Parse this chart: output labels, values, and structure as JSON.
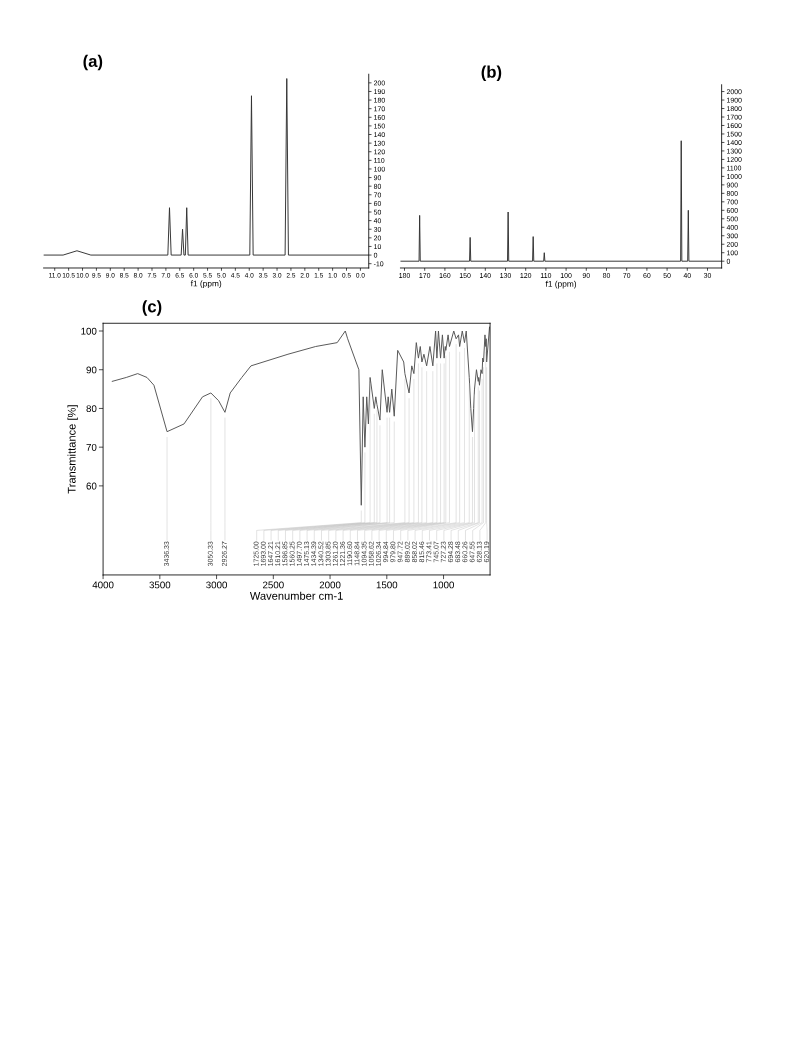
{
  "chart_data": [
    {
      "type": "line",
      "title": "(a)",
      "xlabel": "f1 (ppm)",
      "xlim": [
        11.4,
        -0.3
      ],
      "xticks": [
        {
          "value": 11,
          "label": "11.0"
        },
        10.5,
        {
          "value": 10,
          "label": "10.0"
        },
        9.5,
        {
          "value": 9,
          "label": "9.0"
        },
        8.5,
        {
          "value": 8,
          "label": "8.0"
        },
        7.5,
        {
          "value": 7,
          "label": "7.0"
        },
        6.5,
        {
          "value": 6,
          "label": "6.0"
        },
        5.5,
        {
          "value": 5,
          "label": "5.0"
        },
        4.5,
        {
          "value": 4,
          "label": "4.0"
        },
        3.5,
        {
          "value": 3,
          "label": "3.0"
        },
        2.5,
        {
          "value": 2,
          "label": "2.0"
        },
        1.5,
        {
          "value": 1,
          "label": "1.0"
        },
        0.5,
        {
          "value": 0,
          "label": "0.0"
        }
      ],
      "ylim": [
        -15,
        210
      ],
      "yticks": [
        -10,
        0,
        10,
        20,
        30,
        40,
        50,
        60,
        70,
        80,
        90,
        100,
        110,
        120,
        130,
        140,
        150,
        160,
        170,
        180,
        190,
        200
      ],
      "grid": false,
      "series": [
        {
          "color": "#333333",
          "x": [
            11.4,
            10.7,
            10.2,
            9.7,
            6.93,
            6.87,
            6.81,
            6.45,
            6.4,
            6.35,
            6.3,
            6.25,
            6.2,
            3.98,
            3.92,
            3.86,
            2.71,
            2.65,
            2.59,
            -0.3
          ],
          "values": [
            0,
            0,
            5,
            0,
            0,
            55,
            0,
            0,
            30,
            0,
            0,
            55,
            0,
            0,
            185,
            0,
            0,
            205,
            0,
            0
          ]
        }
      ]
    },
    {
      "type": "line",
      "title": "(b)",
      "xlabel": "f1 (ppm)",
      "xlim": [
        182,
        23
      ],
      "xticks": [
        180,
        170,
        160,
        150,
        140,
        130,
        120,
        110,
        100,
        90,
        80,
        70,
        60,
        50,
        40,
        30
      ],
      "ylim": [
        -80,
        2080
      ],
      "yticks": [
        0,
        100,
        200,
        300,
        400,
        500,
        600,
        700,
        800,
        900,
        1000,
        1100,
        1200,
        1300,
        1400,
        1500,
        1600,
        1700,
        1800,
        1900,
        2000
      ],
      "grid": false,
      "series": [
        {
          "color": "#333333",
          "x": [
            182,
            172.8,
            172.5,
            172.2,
            147.8,
            147.5,
            147.2,
            129.0,
            128.7,
            128.4,
            116.6,
            116.3,
            116.0,
            111.1,
            110.8,
            110.5,
            43.3,
            43.0,
            42.7,
            39.8,
            39.5,
            39.2,
            23
          ],
          "values": [
            0,
            0,
            540,
            0,
            0,
            280,
            0,
            0,
            580,
            0,
            0,
            290,
            0,
            0,
            100,
            0,
            0,
            1420,
            0,
            0,
            600,
            0,
            0
          ]
        }
      ]
    },
    {
      "type": "line",
      "title": "(c)",
      "xlabel": "Wavenumber cm-1",
      "ylabel": "Transmittance [%]",
      "xlim": [
        4000,
        590
      ],
      "xticks": [
        4000,
        3500,
        3000,
        2500,
        2000,
        1500,
        1000
      ],
      "ylim": [
        37,
        102
      ],
      "yticks": [
        60,
        70,
        80,
        90,
        100
      ],
      "grid": false,
      "series": [
        {
          "color": "#555555",
          "x": [
            3919,
            3796,
            3695,
            3613,
            3552,
            3436.33,
            3287,
            3124,
            3050.33,
            2982,
            2926.27,
            2880,
            2778,
            2697,
            2371,
            2127,
            1937,
            1866,
            1845,
            1771,
            1746,
            1725.0,
            1708,
            1693.0,
            1677,
            1662,
            1647.21,
            1610.21,
            1597,
            1586.85,
            1560.25,
            1540,
            1497.7,
            1488,
            1475.13,
            1456,
            1434.39,
            1404,
            1351,
            1340.52,
            1303.85,
            1280,
            1261.2,
            1240,
            1221.36,
            1205,
            1190.6,
            1173,
            1148.84,
            1120,
            1094.35,
            1070,
            1058.62,
            1045,
            1026.34,
            1010,
            994.84,
            985,
            979.8,
            960,
            947.72,
            910,
            889.02,
            868,
            858.02,
            835,
            815.46,
            800,
            773.41,
            760,
            745.07,
            735,
            727.23,
            710,
            694.28,
            690,
            683.48,
            670,
            660.26,
            655,
            647.55,
            635,
            628.13,
            624,
            620.19,
            595
          ],
          "values": [
            87,
            88,
            89,
            88,
            86,
            74,
            76,
            83,
            84,
            82,
            79,
            84,
            88,
            91,
            94,
            96,
            97,
            100,
            98,
            92,
            90,
            55,
            83,
            70,
            83,
            76,
            88,
            80,
            83,
            81,
            77,
            90,
            79,
            83,
            79,
            85,
            78,
            95,
            92,
            89,
            84,
            91,
            89,
            97,
            93,
            96,
            92,
            94,
            91,
            96,
            91,
            100,
            93,
            100,
            93,
            99,
            93,
            96,
            95,
            99,
            96,
            100,
            98,
            99,
            96,
            100,
            97,
            100,
            88,
            80,
            74,
            80,
            85,
            90,
            87,
            88,
            86,
            90,
            89,
            93,
            92,
            99,
            96,
            98,
            92,
            101
          ]
        }
      ],
      "annotations": [
        {
          "text": "3436.33",
          "x": 3436.33,
          "y": 74
        },
        {
          "text": "3050.33",
          "x": 3050.33,
          "y": 84
        },
        {
          "text": "2926.27",
          "x": 2926.27,
          "y": 79
        },
        {
          "text": "1725.00",
          "x": 1725.0,
          "y": 55
        },
        {
          "text": "1693.00",
          "x": 1693.0,
          "y": 70
        },
        {
          "text": "1647.21",
          "x": 1647.21,
          "y": 88
        },
        {
          "text": "1610.21",
          "x": 1610.21,
          "y": 80
        },
        {
          "text": "1586.85",
          "x": 1586.85,
          "y": 81
        },
        {
          "text": "1560.25",
          "x": 1560.25,
          "y": 77
        },
        {
          "text": "1497.70",
          "x": 1497.7,
          "y": 79
        },
        {
          "text": "1475.13",
          "x": 1475.13,
          "y": 79
        },
        {
          "text": "1434.39",
          "x": 1434.39,
          "y": 78
        },
        {
          "text": "1340.52",
          "x": 1340.52,
          "y": 89
        },
        {
          "text": "1303.85",
          "x": 1303.85,
          "y": 84
        },
        {
          "text": "1261.20",
          "x": 1261.2,
          "y": 89
        },
        {
          "text": "1221.36",
          "x": 1221.36,
          "y": 93
        },
        {
          "text": "1190.60",
          "x": 1190.6,
          "y": 92
        },
        {
          "text": "1148.84",
          "x": 1148.84,
          "y": 91
        },
        {
          "text": "1094.35",
          "x": 1094.35,
          "y": 91
        },
        {
          "text": "1058.62",
          "x": 1058.62,
          "y": 93
        },
        {
          "text": "1026.34",
          "x": 1026.34,
          "y": 93
        },
        {
          "text": "994.84",
          "x": 994.84,
          "y": 93
        },
        {
          "text": "979.80",
          "x": 979.8,
          "y": 95
        },
        {
          "text": "947.72",
          "x": 947.72,
          "y": 96
        },
        {
          "text": "889.02",
          "x": 889.02,
          "y": 98
        },
        {
          "text": "858.02",
          "x": 858.02,
          "y": 96
        },
        {
          "text": "815.46",
          "x": 815.46,
          "y": 97
        },
        {
          "text": "773.41",
          "x": 773.41,
          "y": 88
        },
        {
          "text": "745.07",
          "x": 745.07,
          "y": 74
        },
        {
          "text": "727.23",
          "x": 727.23,
          "y": 85
        },
        {
          "text": "694.28",
          "x": 694.28,
          "y": 87
        },
        {
          "text": "683.48",
          "x": 683.48,
          "y": 86
        },
        {
          "text": "660.26",
          "x": 660.26,
          "y": 89
        },
        {
          "text": "647.55",
          "x": 647.55,
          "y": 92
        },
        {
          "text": "628.13",
          "x": 628.13,
          "y": 96
        },
        {
          "text": "620.19",
          "x": 620.19,
          "y": 92
        }
      ]
    }
  ]
}
